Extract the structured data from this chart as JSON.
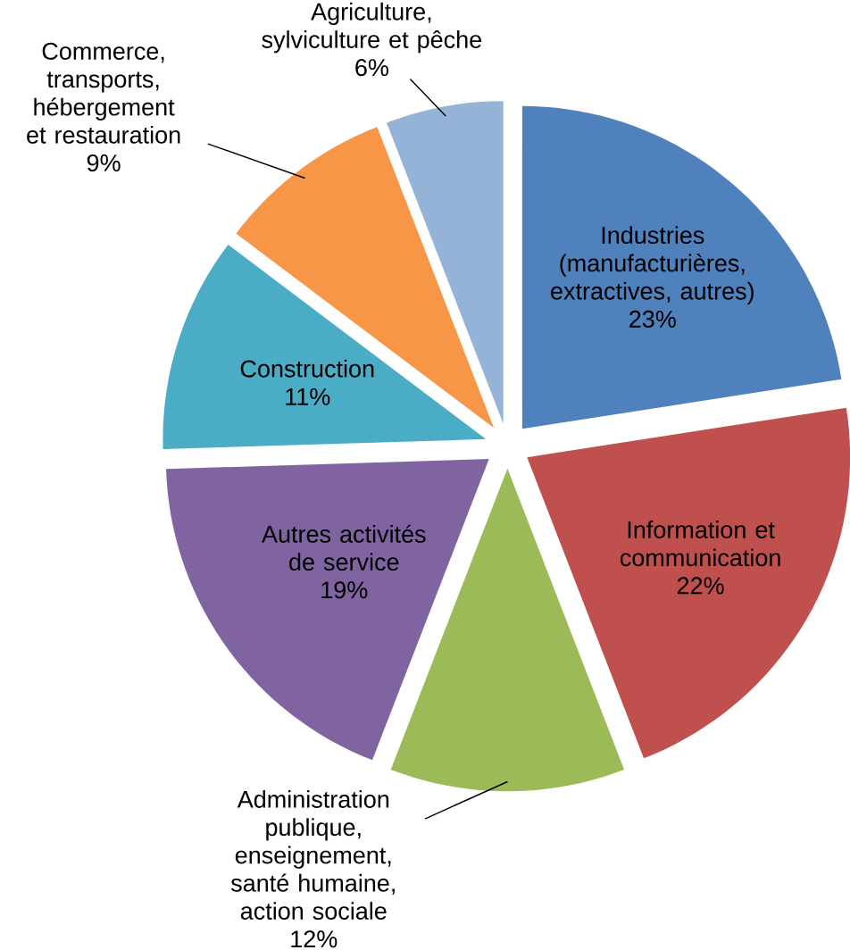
{
  "chart_data": {
    "type": "pie",
    "categories": [
      "Industries (manufacturières, extractives, autres)",
      "Information et communication",
      "Administration publique, enseignement, santé humaine, action sociale",
      "Autres activités de service",
      "Construction",
      "Commerce, transports, hébergement et restauration",
      "Agriculture, sylviculture et pêche"
    ],
    "values": [
      23,
      22,
      12,
      19,
      11,
      9,
      6
    ],
    "value_labels": [
      "23%",
      "22%",
      "12%",
      "19%",
      "11%",
      "9%",
      "6%"
    ],
    "colors": [
      "#4f81bd",
      "#c0504d",
      "#9bbb59",
      "#8064a2",
      "#4bacc6",
      "#f79646",
      "#95b3d7"
    ]
  }
}
